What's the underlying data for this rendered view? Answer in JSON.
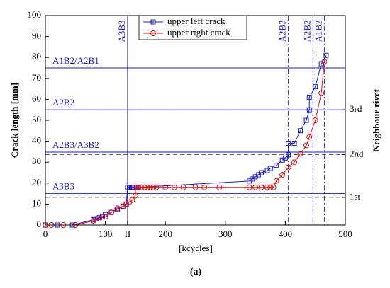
{
  "chart_data": {
    "type": "line",
    "caption": "(a)",
    "xlabel": "[kcycles]",
    "ylabel": "Crack length [mm]",
    "y2label": "Neighbour rivet",
    "xlim": [
      0,
      500
    ],
    "ylim": [
      0,
      100
    ],
    "y2lim": [
      0,
      100
    ],
    "xticks": [
      0,
      100,
      {
        "value": 137,
        "label": "II"
      },
      200,
      300,
      400,
      500
    ],
    "yticks": [
      0,
      10,
      20,
      30,
      40,
      50,
      60,
      70,
      80,
      90,
      100
    ],
    "y2ticks": [
      {
        "value": 13.2,
        "label": "1st"
      },
      {
        "value": 33.6,
        "label": "2nd"
      },
      {
        "value": 55,
        "label": "3rd"
      }
    ],
    "legend": "upper center",
    "hlines": [
      {
        "label": "A1B2/A2B1",
        "value": 75
      },
      {
        "label": "A2B2",
        "value": 55
      },
      {
        "label": "A2B3/A3B2",
        "value": 34.8
      },
      {
        "label": "A3B3",
        "value": 15
      }
    ],
    "vlines": [
      {
        "label": "A3B3",
        "value": 137,
        "style": "solid"
      },
      {
        "label": "A2B3",
        "value": 405,
        "style": "dashdot"
      },
      {
        "label": "A2B2",
        "value": 446,
        "style": "dashdot"
      },
      {
        "label": "A1B2",
        "value": 465,
        "style": "dashdot"
      }
    ],
    "series": [
      {
        "name": "upper left crack",
        "color": "#1a1acc",
        "marker": "square",
        "x": [
          0,
          20,
          45,
          80,
          85,
          90,
          95,
          100,
          110,
          120,
          130,
          135,
          137,
          140,
          143,
          146,
          149,
          152,
          155,
          340,
          345,
          350,
          355,
          360,
          370,
          375,
          385,
          395,
          400,
          405,
          405,
          415,
          425,
          435,
          440,
          440,
          450,
          460,
          468
        ],
        "values": [
          0,
          0,
          0,
          2.5,
          3,
          3.5,
          4,
          5,
          6,
          7.5,
          9,
          10,
          18,
          18,
          18,
          18,
          18,
          18,
          18,
          21,
          22,
          23,
          24,
          25,
          26,
          27,
          28.5,
          31,
          32,
          33.5,
          39,
          39,
          45,
          50,
          55,
          61,
          66,
          77,
          81
        ]
      },
      {
        "name": "upper right crack",
        "color": "#dd1111",
        "marker": "circle",
        "x": [
          0,
          10,
          30,
          50,
          80,
          90,
          100,
          110,
          120,
          130,
          135,
          140,
          145,
          150,
          150,
          155,
          160,
          165,
          170,
          175,
          180,
          185,
          200,
          215,
          230,
          250,
          265,
          290,
          340,
          350,
          360,
          370,
          375,
          380,
          385,
          395,
          405,
          415,
          425,
          435,
          440,
          450,
          460,
          465
        ],
        "values": [
          0,
          0,
          0,
          0,
          2,
          3,
          4,
          6,
          8,
          9,
          10,
          11,
          12,
          14,
          18,
          18,
          18,
          18,
          18,
          18,
          18,
          18,
          18,
          18,
          18,
          18,
          18,
          18,
          18,
          18,
          18,
          18,
          18,
          18,
          21,
          24,
          27.5,
          30,
          34,
          38,
          42,
          50,
          63,
          78
        ]
      }
    ]
  }
}
